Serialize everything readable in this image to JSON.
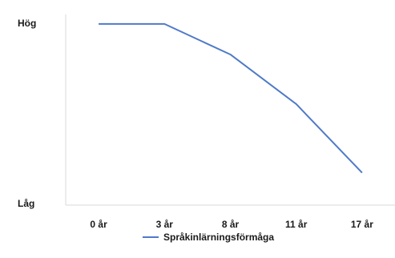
{
  "chart_data": {
    "type": "line",
    "title": "",
    "xlabel": "",
    "ylabel": "",
    "categories": [
      "0 år",
      "3 år",
      "8 år",
      "11 år",
      "17 år"
    ],
    "y_labels": {
      "top": "Hög",
      "bottom": "Låg"
    },
    "ylim": [
      0,
      100
    ],
    "grid": false,
    "legend_position": "bottom",
    "series": [
      {
        "name": "Språkinlärningsförmåga",
        "values": [
          95,
          95,
          79,
          53,
          17
        ],
        "color": "#4f7ac7"
      }
    ]
  }
}
